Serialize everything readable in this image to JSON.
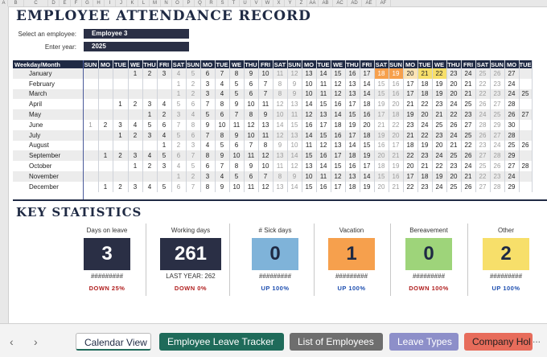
{
  "column_headers": [
    "A",
    "B",
    "C",
    "D",
    "E",
    "F",
    "G",
    "H",
    "I",
    "J",
    "K",
    "L",
    "M",
    "N",
    "O",
    "P",
    "Q",
    "R",
    "S",
    "T",
    "U",
    "V",
    "W",
    "X",
    "Y",
    "Z",
    "AA",
    "AB",
    "AC",
    "AD",
    "AE",
    "AF"
  ],
  "title": "EMPLOYEE ATTENDANCE RECORD",
  "selector": {
    "employee_label": "Select an employee:",
    "employee_value": "Employee 3",
    "year_label": "Enter year:",
    "year_value": "2025"
  },
  "calendar": {
    "corner_label": "Weekday/Month",
    "weekdays": [
      "SUN",
      "MO",
      "TUE",
      "WE",
      "THU",
      "FRI",
      "SAT",
      "SUN",
      "MO",
      "TUE",
      "WE",
      "THU",
      "FRI",
      "SAT",
      "SUN",
      "MO",
      "TUE",
      "WE",
      "THU",
      "FRI",
      "SAT",
      "SUN",
      "MO",
      "TUE",
      "WE",
      "THU",
      "FRI",
      "SAT",
      "SUN",
      "MO",
      "TUE"
    ],
    "months": [
      {
        "name": "January",
        "start": 3,
        "days": 27
      },
      {
        "name": "February",
        "start": 6,
        "days": 24
      },
      {
        "name": "March",
        "start": 6,
        "days": 27
      },
      {
        "name": "April",
        "start": 2,
        "days": 28
      },
      {
        "name": "May",
        "start": 4,
        "days": 28
      },
      {
        "name": "June",
        "start": 0,
        "days": 30
      },
      {
        "name": "July",
        "start": 2,
        "days": 28
      },
      {
        "name": "August",
        "start": 5,
        "days": 26
      },
      {
        "name": "September",
        "start": 1,
        "days": 29
      },
      {
        "name": "October",
        "start": 3,
        "days": 28
      },
      {
        "name": "November",
        "start": 6,
        "days": 24
      },
      {
        "name": "December",
        "start": 1,
        "days": 29
      }
    ],
    "highlight_colors": {
      "leave": "#f6a04d",
      "sick": "#f7df6a",
      "light": "#fbe3b5"
    }
  },
  "key_statistics": {
    "heading": "KEY STATISTICS",
    "items": [
      {
        "label": "Days on leave",
        "value": "3",
        "sub": "#########",
        "delta": "DOWN 25%",
        "box_color": "#2a2f45",
        "text_color": "#ffffff",
        "delta_color": "#b01e1e"
      },
      {
        "label": "Working days",
        "value": "261",
        "sub": "LAST YEAR: 262",
        "delta": "DOWN 0%",
        "box_color": "#2a2f45",
        "text_color": "#ffffff",
        "delta_color": "#b01e1e"
      },
      {
        "label": "# Sick days",
        "value": "0",
        "sub": "#########",
        "delta": "UP 100%",
        "box_color": "#7fb3d9",
        "text_color": "#1f2a44",
        "delta_color": "#1e4fb0"
      },
      {
        "label": "Vacation",
        "value": "1",
        "sub": "#########",
        "delta": "UP 100%",
        "box_color": "#f6a04d",
        "text_color": "#1f2a44",
        "delta_color": "#1e4fb0"
      },
      {
        "label": "Bereavement",
        "value": "0",
        "sub": "#########",
        "delta": "DOWN 100%",
        "box_color": "#9ed47a",
        "text_color": "#1f2a44",
        "delta_color": "#b01e1e"
      },
      {
        "label": "Other",
        "value": "2",
        "sub": "#########",
        "delta": "UP 100%",
        "box_color": "#f7df6a",
        "text_color": "#1f2a44",
        "delta_color": "#1e4fb0"
      }
    ]
  },
  "sheet_tabs": {
    "prev": "‹",
    "next": "›",
    "tabs": [
      {
        "label": "Calendar View",
        "active": true,
        "bg": "#ffffff",
        "fg": "#1f2a44"
      },
      {
        "label": "Employee Leave Tracker",
        "bg": "#1f6b5a",
        "fg": "#ffffff"
      },
      {
        "label": "List of Employees",
        "bg": "#6e6e6e",
        "fg": "#ffffff"
      },
      {
        "label": "Leave Types",
        "bg": "#8d8fc9",
        "fg": "#ffffff"
      },
      {
        "label": "Company Hol",
        "bg": "#e76c5b",
        "fg": "#1f1f1f"
      }
    ],
    "more": "..."
  }
}
